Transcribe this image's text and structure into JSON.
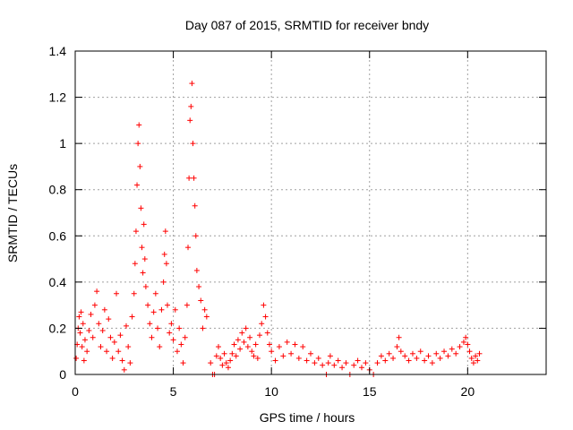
{
  "chart_data": {
    "type": "scatter",
    "title": "Day 087 of 2015, SRMTID for receiver bndy",
    "xlabel": "GPS time / hours",
    "ylabel": "SRMTID / TECUs",
    "xlim": [
      0,
      24
    ],
    "ylim": [
      0,
      1.4
    ],
    "x_ticks": [
      0,
      5,
      10,
      15,
      20
    ],
    "x_tick_labels": [
      "0",
      "5",
      "10",
      "15",
      "20"
    ],
    "y_ticks": [
      0,
      0.2,
      0.4,
      0.6,
      0.8,
      1.0,
      1.2,
      1.4
    ],
    "y_tick_labels": [
      "0",
      "0.2",
      "0.4",
      "0.6",
      "0.8",
      "1",
      "1.2",
      "1.4"
    ],
    "grid": true,
    "marker": "+",
    "marker_color": "#ff0000",
    "series": [
      {
        "name": "SRMTID",
        "points": [
          [
            0.05,
            0.07
          ],
          [
            0.1,
            0.13
          ],
          [
            0.15,
            0.2
          ],
          [
            0.2,
            0.25
          ],
          [
            0.25,
            0.18
          ],
          [
            0.3,
            0.27
          ],
          [
            0.35,
            0.12
          ],
          [
            0.4,
            0.22
          ],
          [
            0.45,
            0.06
          ],
          [
            0.5,
            0.15
          ],
          [
            0.6,
            0.1
          ],
          [
            0.7,
            0.19
          ],
          [
            0.8,
            0.26
          ],
          [
            0.9,
            0.16
          ],
          [
            1.0,
            0.3
          ],
          [
            1.1,
            0.36
          ],
          [
            1.2,
            0.22
          ],
          [
            1.3,
            0.12
          ],
          [
            1.4,
            0.19
          ],
          [
            1.5,
            0.28
          ],
          [
            1.6,
            0.1
          ],
          [
            1.7,
            0.24
          ],
          [
            1.8,
            0.16
          ],
          [
            1.9,
            0.07
          ],
          [
            2.0,
            0.14
          ],
          [
            2.1,
            0.35
          ],
          [
            2.2,
            0.1
          ],
          [
            2.3,
            0.17
          ],
          [
            2.4,
            0.06
          ],
          [
            2.5,
            0.02
          ],
          [
            2.6,
            0.21
          ],
          [
            2.7,
            0.12
          ],
          [
            2.8,
            0.05
          ],
          [
            2.9,
            0.25
          ],
          [
            3.0,
            0.35
          ],
          [
            3.05,
            0.48
          ],
          [
            3.1,
            0.62
          ],
          [
            3.15,
            0.82
          ],
          [
            3.2,
            1.0
          ],
          [
            3.25,
            1.08
          ],
          [
            3.3,
            0.9
          ],
          [
            3.35,
            0.72
          ],
          [
            3.4,
            0.55
          ],
          [
            3.45,
            0.44
          ],
          [
            3.5,
            0.65
          ],
          [
            3.55,
            0.5
          ],
          [
            3.6,
            0.38
          ],
          [
            3.7,
            0.3
          ],
          [
            3.8,
            0.22
          ],
          [
            3.9,
            0.16
          ],
          [
            4.0,
            0.27
          ],
          [
            4.1,
            0.35
          ],
          [
            4.2,
            0.2
          ],
          [
            4.3,
            0.12
          ],
          [
            4.4,
            0.28
          ],
          [
            4.5,
            0.4
          ],
          [
            4.55,
            0.52
          ],
          [
            4.6,
            0.62
          ],
          [
            4.65,
            0.48
          ],
          [
            4.7,
            0.3
          ],
          [
            4.8,
            0.18
          ],
          [
            4.9,
            0.22
          ],
          [
            5.0,
            0.15
          ],
          [
            5.1,
            0.28
          ],
          [
            5.2,
            0.1
          ],
          [
            5.3,
            0.2
          ],
          [
            5.4,
            0.13
          ],
          [
            5.5,
            0.05
          ],
          [
            5.6,
            0.16
          ],
          [
            5.7,
            0.3
          ],
          [
            5.75,
            0.55
          ],
          [
            5.8,
            0.85
          ],
          [
            5.85,
            1.1
          ],
          [
            5.9,
            1.16
          ],
          [
            5.95,
            1.26
          ],
          [
            6.0,
            1.0
          ],
          [
            6.05,
            0.85
          ],
          [
            6.1,
            0.73
          ],
          [
            6.15,
            0.6
          ],
          [
            6.2,
            0.45
          ],
          [
            6.3,
            0.38
          ],
          [
            6.4,
            0.32
          ],
          [
            6.5,
            0.2
          ],
          [
            6.6,
            0.28
          ],
          [
            6.7,
            0.25
          ],
          [
            6.9,
            0.05
          ],
          [
            7.0,
            0.0
          ],
          [
            7.1,
            0.0
          ],
          [
            7.2,
            0.08
          ],
          [
            7.3,
            0.12
          ],
          [
            7.4,
            0.07
          ],
          [
            7.5,
            0.04
          ],
          [
            7.6,
            0.09
          ],
          [
            7.7,
            0.05
          ],
          [
            7.8,
            0.03
          ],
          [
            7.9,
            0.06
          ],
          [
            8.0,
            0.09
          ],
          [
            8.1,
            0.13
          ],
          [
            8.2,
            0.08
          ],
          [
            8.3,
            0.15
          ],
          [
            8.4,
            0.11
          ],
          [
            8.5,
            0.18
          ],
          [
            8.6,
            0.14
          ],
          [
            8.7,
            0.2
          ],
          [
            8.8,
            0.12
          ],
          [
            8.9,
            0.16
          ],
          [
            9.0,
            0.1
          ],
          [
            9.1,
            0.08
          ],
          [
            9.2,
            0.13
          ],
          [
            9.3,
            0.07
          ],
          [
            9.4,
            0.17
          ],
          [
            9.5,
            0.22
          ],
          [
            9.6,
            0.3
          ],
          [
            9.7,
            0.25
          ],
          [
            9.8,
            0.18
          ],
          [
            9.9,
            0.13
          ],
          [
            10.0,
            0.1
          ],
          [
            10.2,
            0.06
          ],
          [
            10.4,
            0.12
          ],
          [
            10.6,
            0.08
          ],
          [
            10.8,
            0.14
          ],
          [
            11.0,
            0.09
          ],
          [
            11.2,
            0.13
          ],
          [
            11.4,
            0.07
          ],
          [
            11.6,
            0.12
          ],
          [
            11.8,
            0.06
          ],
          [
            12.0,
            0.09
          ],
          [
            12.2,
            0.05
          ],
          [
            12.4,
            0.07
          ],
          [
            12.6,
            0.04
          ],
          [
            12.8,
            0.0
          ],
          [
            12.9,
            0.05
          ],
          [
            13.0,
            0.08
          ],
          [
            13.2,
            0.04
          ],
          [
            13.4,
            0.06
          ],
          [
            13.6,
            0.03
          ],
          [
            13.8,
            0.05
          ],
          [
            14.0,
            0.0
          ],
          [
            14.2,
            0.04
          ],
          [
            14.4,
            0.06
          ],
          [
            14.6,
            0.03
          ],
          [
            14.8,
            0.05
          ],
          [
            15.0,
            0.02
          ],
          [
            15.2,
            0.0
          ],
          [
            15.4,
            0.05
          ],
          [
            15.6,
            0.08
          ],
          [
            15.8,
            0.06
          ],
          [
            16.0,
            0.09
          ],
          [
            16.2,
            0.07
          ],
          [
            16.4,
            0.12
          ],
          [
            16.5,
            0.16
          ],
          [
            16.6,
            0.1
          ],
          [
            16.8,
            0.08
          ],
          [
            17.0,
            0.06
          ],
          [
            17.2,
            0.09
          ],
          [
            17.4,
            0.07
          ],
          [
            17.6,
            0.1
          ],
          [
            17.8,
            0.06
          ],
          [
            18.0,
            0.08
          ],
          [
            18.2,
            0.05
          ],
          [
            18.4,
            0.09
          ],
          [
            18.6,
            0.07
          ],
          [
            18.8,
            0.1
          ],
          [
            19.0,
            0.08
          ],
          [
            19.2,
            0.11
          ],
          [
            19.4,
            0.09
          ],
          [
            19.6,
            0.12
          ],
          [
            19.8,
            0.14
          ],
          [
            19.9,
            0.16
          ],
          [
            20.0,
            0.13
          ],
          [
            20.1,
            0.1
          ],
          [
            20.2,
            0.07
          ],
          [
            20.3,
            0.05
          ],
          [
            20.4,
            0.08
          ],
          [
            20.5,
            0.06
          ],
          [
            20.6,
            0.09
          ]
        ]
      }
    ]
  }
}
